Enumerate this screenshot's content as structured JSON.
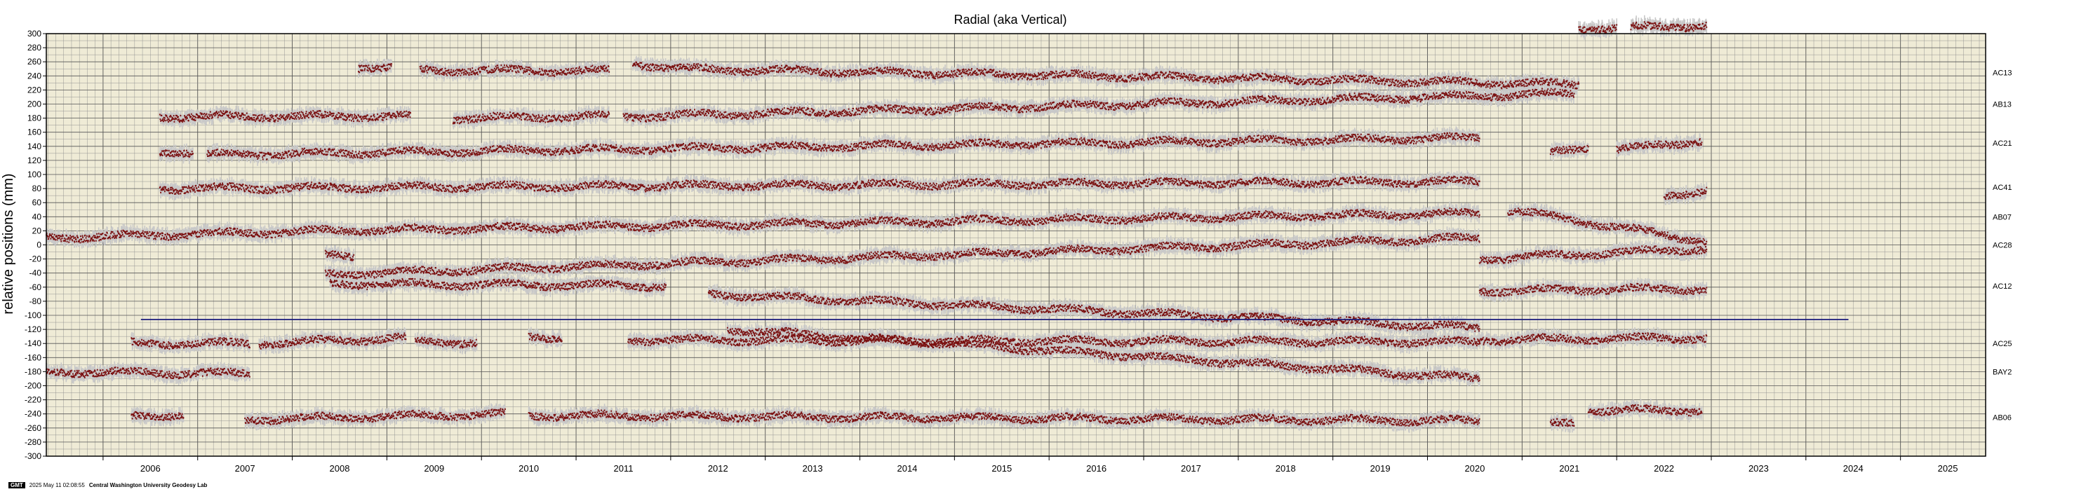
{
  "chart_data": {
    "type": "scatter",
    "title": "Radial (aka Vertical)",
    "ylabel": "relative positions (mm)",
    "xlabel": "",
    "xlim": [
      2005.4,
      2025.9
    ],
    "ylim": [
      -300,
      300
    ],
    "y_ticks": [
      300,
      280,
      260,
      240,
      220,
      200,
      180,
      160,
      140,
      120,
      100,
      80,
      60,
      40,
      20,
      0,
      -20,
      -40,
      -60,
      -80,
      -100,
      -120,
      -140,
      -160,
      -180,
      -200,
      -220,
      -240,
      -260,
      -280,
      -300
    ],
    "x_tick_labels": [
      "2006",
      "2007",
      "2008",
      "2009",
      "2010",
      "2011",
      "2012",
      "2013",
      "2014",
      "2015",
      "2016",
      "2017",
      "2018",
      "2019",
      "2020",
      "2021",
      "2022",
      "2023",
      "2024",
      "2025"
    ],
    "grid": true,
    "background_color": "#efebd6",
    "point_color": "#7a0f0f",
    "error_color": "#c8c8c8",
    "reference_line": {
      "y": -106,
      "x_start": 2006.4,
      "x_end": 2024.45,
      "color": "#1a1a7a"
    },
    "series": [
      {
        "name": "AC13",
        "baseline": 245,
        "segments": [
          [
            2008.7,
            2009.05,
            253,
            252
          ],
          [
            2009.35,
            2011.35,
            248,
            247
          ],
          [
            2011.6,
            2012.1,
            258,
            250
          ],
          [
            2012.1,
            2021.6,
            250,
            228
          ],
          [
            2021.6,
            2022.0,
            308,
            308
          ],
          [
            2022.15,
            2022.95,
            308,
            312
          ]
        ]
      },
      {
        "name": "AB13",
        "baseline": 200,
        "segments": [
          [
            2006.6,
            2009.25,
            182,
            183
          ],
          [
            2009.7,
            2011.35,
            180,
            183
          ],
          [
            2011.5,
            2021.55,
            182,
            215
          ]
        ]
      },
      {
        "name": "AC21",
        "baseline": 145,
        "segments": [
          [
            2006.6,
            2006.95,
            133,
            131
          ],
          [
            2007.1,
            2020.55,
            128,
            152
          ],
          [
            2021.3,
            2021.7,
            130,
            140
          ],
          [
            2022.0,
            2022.9,
            135,
            148
          ]
        ]
      },
      {
        "name": "AC41",
        "baseline": 82,
        "segments": [
          [
            2006.6,
            2020.55,
            80,
            90
          ],
          [
            2022.5,
            2022.95,
            70,
            78
          ]
        ]
      },
      {
        "name": "AB07",
        "baseline": 40,
        "segments": [
          [
            2005.4,
            2008.35,
            10,
            20
          ],
          [
            2008.35,
            2020.55,
            20,
            45
          ],
          [
            2020.85,
            2022.95,
            50,
            5
          ]
        ]
      },
      {
        "name": "AC28",
        "baseline": 0,
        "segments": [
          [
            2008.35,
            2008.65,
            -15,
            -15
          ],
          [
            2008.35,
            2020.55,
            -42,
            10
          ],
          [
            2020.55,
            2022.95,
            -20,
            -5
          ]
        ]
      },
      {
        "name": "AC12",
        "baseline": -58,
        "segments": [
          [
            2008.4,
            2011.95,
            -55,
            -58
          ],
          [
            2012.4,
            2020.55,
            -70,
            -118
          ],
          [
            2020.55,
            2022.95,
            -65,
            -62
          ]
        ]
      },
      {
        "name": "AC25",
        "baseline": -140,
        "segments": [
          [
            2006.3,
            2007.55,
            -140,
            -140
          ],
          [
            2007.65,
            2009.2,
            -140,
            -132
          ],
          [
            2009.3,
            2009.95,
            -138,
            -138
          ],
          [
            2010.5,
            2010.85,
            -130,
            -132
          ],
          [
            2011.55,
            2020.55,
            -135,
            -138
          ],
          [
            2020.55,
            2022.95,
            -135,
            -132
          ]
        ]
      },
      {
        "name": "BAY2",
        "baseline": -180,
        "segments": [
          [
            2005.4,
            2007.55,
            -180,
            -183
          ],
          [
            2012.6,
            2020.55,
            -120,
            -190
          ]
        ]
      },
      {
        "name": "AB06",
        "baseline": -245,
        "segments": [
          [
            2006.3,
            2006.85,
            -245,
            -240
          ],
          [
            2007.5,
            2010.25,
            -248,
            -240
          ],
          [
            2010.5,
            2020.55,
            -242,
            -250
          ],
          [
            2021.3,
            2021.55,
            -255,
            -252
          ],
          [
            2021.7,
            2022.9,
            -235,
            -235
          ]
        ]
      }
    ]
  },
  "footer": {
    "badge": "GMT",
    "timestamp": "2025 May 11 02:08:55",
    "credit": "Central Washington University Geodesy Lab"
  }
}
